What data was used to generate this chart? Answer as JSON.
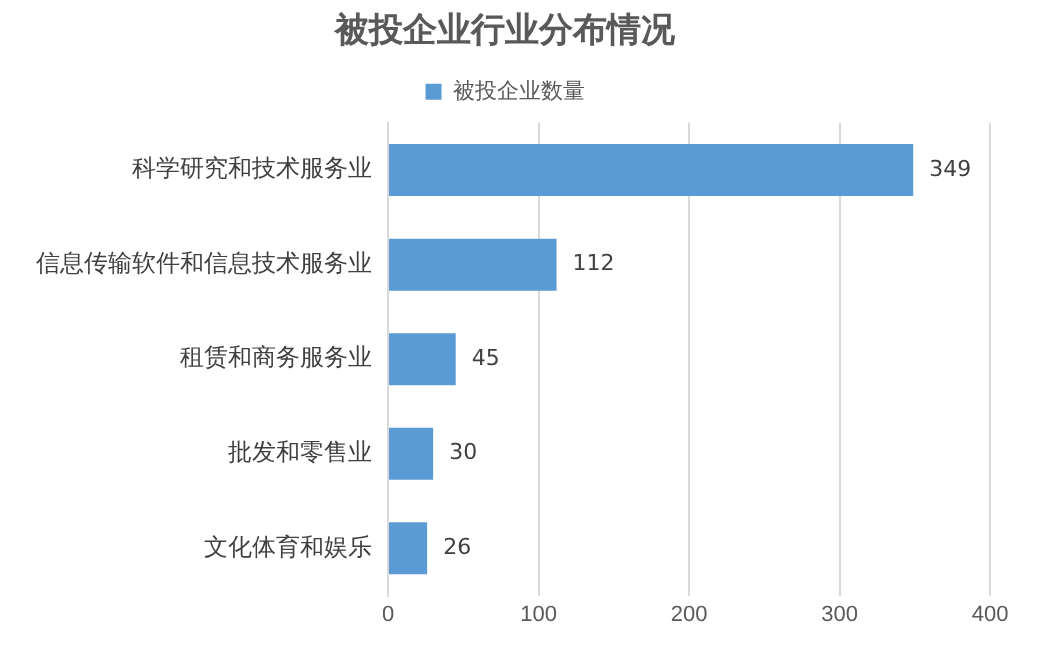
{
  "chart_data": {
    "type": "bar",
    "orientation": "horizontal",
    "title": "被投企业行业分布情况",
    "categories": [
      "科学研究和技术服务业",
      "信息传输软件和信息技术服务业",
      "租赁和商务服务业",
      "批发和零售业",
      "文化体育和娱乐"
    ],
    "series": [
      {
        "name": "被投企业数量",
        "color": "#5b9bd5",
        "values": [
          349,
          112,
          45,
          30,
          26
        ]
      }
    ],
    "xlim": [
      0,
      400
    ],
    "xticks": [
      0,
      100,
      200,
      300,
      400
    ],
    "grid": "x",
    "legend": "top",
    "data_labels": true
  }
}
